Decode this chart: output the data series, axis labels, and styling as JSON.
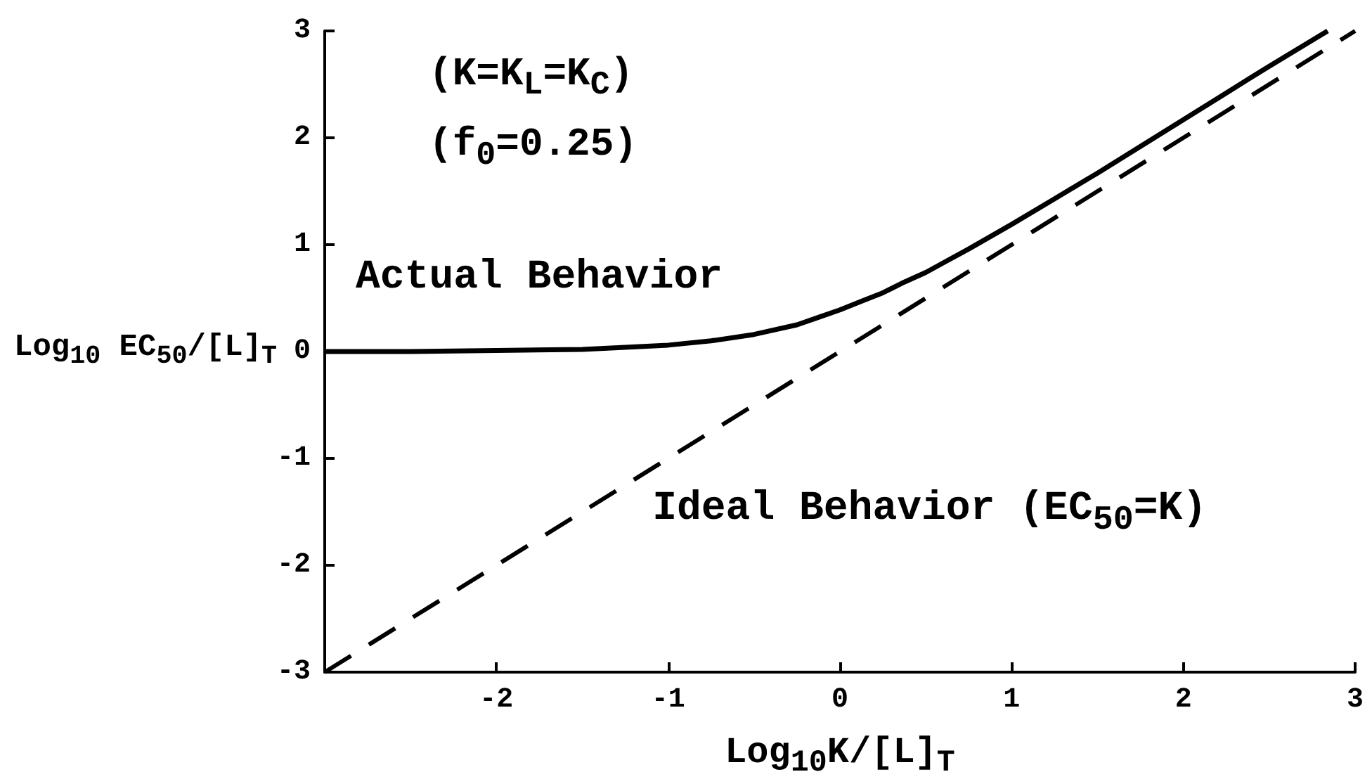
{
  "chart_data": {
    "type": "line",
    "xlabel": "Log$_{10}$K/[L]$_{T}$",
    "ylabel": "Log$_{10}$ EC$_{50}$/[L]$_{T}$",
    "xlim": [
      -3,
      3
    ],
    "xticks": [
      -2,
      -1,
      0,
      1,
      2,
      3
    ],
    "ylim": [
      -3,
      3
    ],
    "yticks": [
      -3,
      -2,
      -1,
      0,
      1,
      2,
      3
    ],
    "line_style": "solid",
    "series": [
      {
        "color": "#000000",
        "x": [
          -3,
          -2.5,
          -2,
          -1.5,
          -1,
          -0.75,
          -0.5,
          -0.25,
          -0.125,
          0,
          0.125,
          0.25,
          0.375,
          0.5,
          0.625,
          0.75,
          1,
          1.25,
          1.5,
          1.75,
          2,
          2.25,
          2.5,
          2.84
        ],
        "values": [
          0,
          0,
          0.01,
          0.02,
          0.06,
          0.1,
          0.16,
          0.25,
          0.32,
          0.39,
          0.47,
          0.55,
          0.65,
          0.74,
          0.85,
          0.96,
          1.19,
          1.43,
          1.67,
          1.92,
          2.17,
          2.42,
          2.67,
          3.0
        ]
      },
      {
        "color": "#000000",
        "line_style": "dashed",
        "x": [
          -3,
          3
        ],
        "values": [
          -3,
          3
        ]
      }
    ],
    "annotations": [
      "(K=K$_{L}$=K$_{C}$)",
      "(f$_{0}$=0.25)",
      "Actual Behavior",
      "Ideal Behavior (EC$_{50}$=K)"
    ]
  }
}
